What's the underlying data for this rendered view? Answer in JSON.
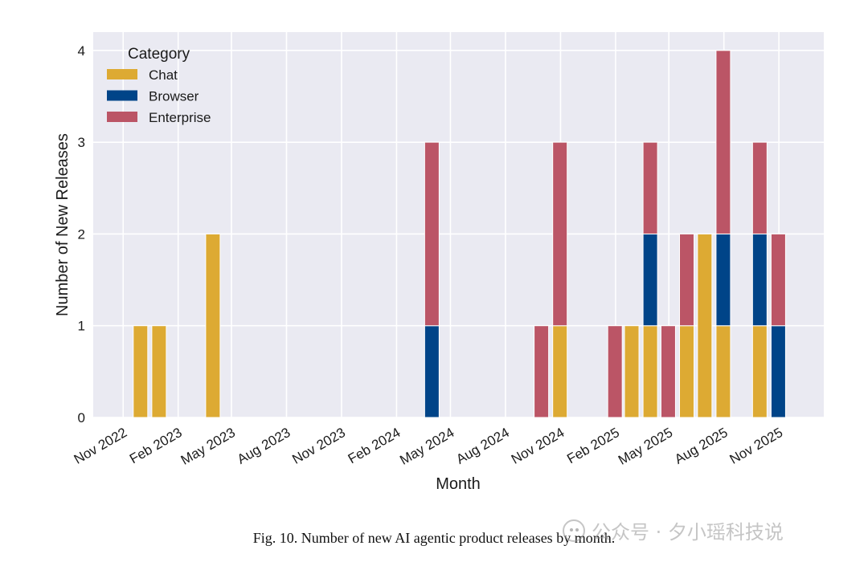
{
  "chart_data": {
    "type": "bar",
    "stacked": true,
    "title": "",
    "xlabel": "Month",
    "ylabel": "Number of New Releases",
    "ylim": [
      0,
      4.2
    ],
    "yticks": [
      0,
      1,
      2,
      3,
      4
    ],
    "xlim": [
      "2022-09-12",
      "2026-01-15"
    ],
    "xtick_labels": [
      "Nov 2022",
      "Feb 2023",
      "May 2023",
      "Aug 2023",
      "Nov 2023",
      "Feb 2024",
      "May 2024",
      "Aug 2024",
      "Nov 2024",
      "Feb 2025",
      "May 2025",
      "Aug 2025",
      "Nov 2025"
    ],
    "xtick_dates": [
      "2022-11-01",
      "2023-02-01",
      "2023-05-01",
      "2023-08-01",
      "2023-11-01",
      "2024-02-01",
      "2024-05-01",
      "2024-08-01",
      "2024-11-01",
      "2025-02-01",
      "2025-05-01",
      "2025-08-01",
      "2025-11-01"
    ],
    "grid": true,
    "legend": {
      "title": "Category",
      "position": "top-left"
    },
    "x": [
      "2022-11-30",
      "2022-12-31",
      "2023-03-31",
      "2024-03-31",
      "2024-09-30",
      "2024-10-31",
      "2025-01-31",
      "2025-02-28",
      "2025-03-31",
      "2025-04-30",
      "2025-05-31",
      "2025-06-30",
      "2025-07-31",
      "2025-09-30",
      "2025-10-31"
    ],
    "series": [
      {
        "name": "Chat",
        "color": "#DDAA33",
        "values": [
          1,
          1,
          2,
          0,
          0,
          1,
          0,
          1,
          1,
          0,
          1,
          2,
          1,
          1,
          0
        ]
      },
      {
        "name": "Browser",
        "color": "#004488",
        "values": [
          0,
          0,
          0,
          1,
          0,
          0,
          0,
          0,
          1,
          0,
          0,
          0,
          1,
          1,
          1
        ]
      },
      {
        "name": "Enterprise",
        "color": "#BB5566",
        "values": [
          0,
          0,
          0,
          2,
          1,
          2,
          1,
          0,
          1,
          1,
          1,
          0,
          2,
          1,
          1
        ]
      }
    ]
  },
  "caption": "Fig. 10.  Number of new AI agentic product releases by month.",
  "watermark": "公众号 · 夕小瑶科技说",
  "colors": {
    "plot_background": "#EAEAF2",
    "grid": "#FFFFFF"
  }
}
